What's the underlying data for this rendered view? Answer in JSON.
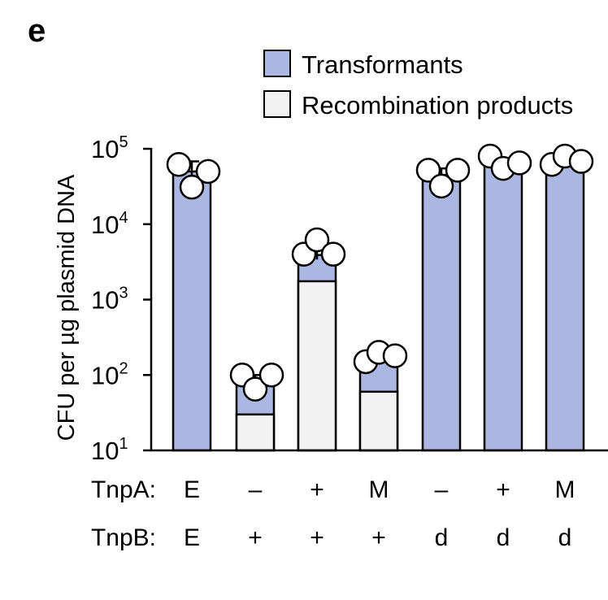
{
  "panel_label": "e",
  "chart_data": {
    "type": "bar",
    "stacked": true,
    "y_scale": "log",
    "ylim": [
      10,
      100000
    ],
    "ylabel": "CFU per µg plasmid DNA",
    "yticks": [
      {
        "base": "10",
        "exp": "1",
        "value": 10
      },
      {
        "base": "10",
        "exp": "2",
        "value": 100
      },
      {
        "base": "10",
        "exp": "3",
        "value": 1000
      },
      {
        "base": "10",
        "exp": "4",
        "value": 10000
      },
      {
        "base": "10",
        "exp": "5",
        "value": 100000
      }
    ],
    "legend": {
      "placement": "top",
      "entries": [
        {
          "label": "Transformants",
          "color": "#aab7e2"
        },
        {
          "label": "Recombination products",
          "color": "#f2f2f2"
        }
      ]
    },
    "row_labels": [
      "TnpA:",
      "TnpB:"
    ],
    "categories": [
      {
        "tnpA": "E",
        "tnpB": "E"
      },
      {
        "tnpA": "–",
        "tnpB": "+"
      },
      {
        "tnpA": "+",
        "tnpB": "+"
      },
      {
        "tnpA": "M",
        "tnpB": "+"
      },
      {
        "tnpA": "–",
        "tnpB": "d"
      },
      {
        "tnpA": "+",
        "tnpB": "d"
      },
      {
        "tnpA": "M",
        "tnpB": "d"
      }
    ],
    "series": [
      {
        "name": "Transformants",
        "color": "#aab7e2",
        "values": [
          50000,
          80,
          3900,
          150,
          45000,
          60000,
          65000
        ],
        "error": [
          [
            41000,
            68000
          ],
          [
            70,
            100
          ],
          [
            3400,
            5000
          ],
          [
            140,
            180
          ],
          [
            40000,
            55000
          ],
          [
            52000,
            75000
          ],
          [
            60000,
            75000
          ]
        ],
        "points": [
          [
            62000,
            31000,
            50000
          ],
          [
            100,
            65,
            100
          ],
          [
            4000,
            6200,
            4000
          ],
          [
            150,
            200,
            180
          ],
          [
            52000,
            32000,
            52000
          ],
          [
            80000,
            55000,
            65000
          ],
          [
            62000,
            80000,
            68000
          ]
        ]
      },
      {
        "name": "Recombination products",
        "color": "#f2f2f2",
        "values": [
          null,
          30,
          1750,
          60,
          null,
          null,
          null
        ]
      }
    ]
  }
}
